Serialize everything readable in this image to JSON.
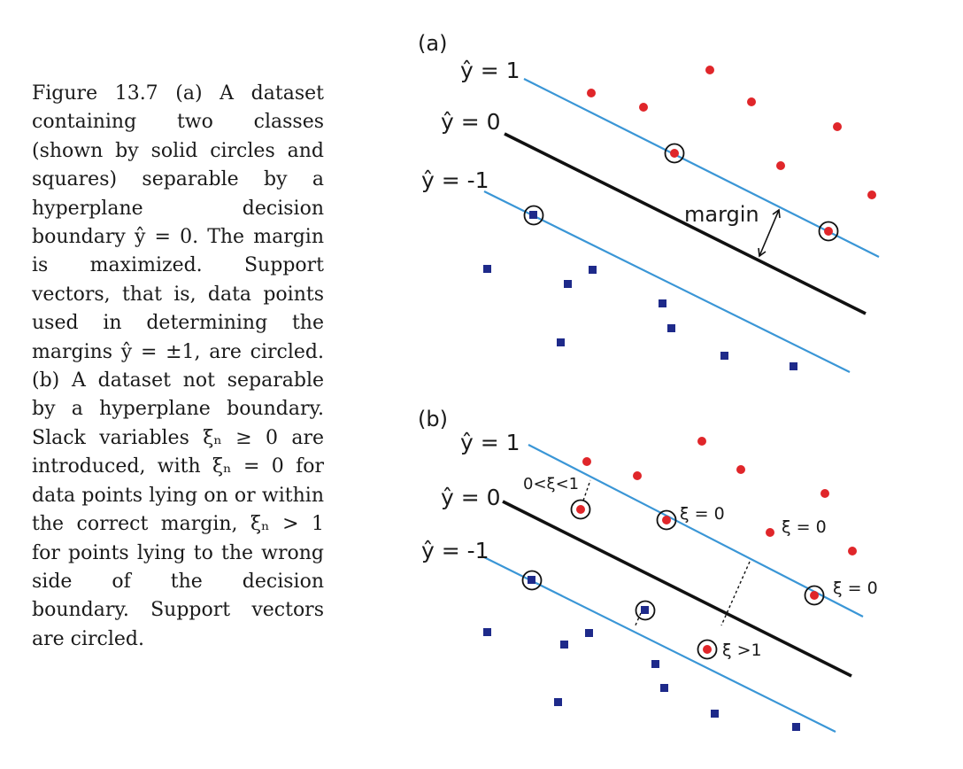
{
  "caption": "Figure 13.7 (a) A dataset containing two classes (shown by solid circles and squares) separable by a hyperplane decision boundary ŷ = 0. The margin is maximized. Support vectors, that is, data points used in determining the margins ŷ = ±1, are circled. (b) A dataset not separable by a hyperplane boundary. Slack variables ξₙ ≥ 0 are introduced, with ξₙ = 0 for data points lying on or within the correct margin, ξₙ > 1 for points lying to the wrong side of the decision boundary. Support vectors are circled.",
  "colors": {
    "margin_line": "#3a96d6",
    "boundary_line": "#111111",
    "class_circle": "#e0262a",
    "class_square": "#1e2a8a"
  },
  "panel_a": {
    "label": "(a)",
    "y_plus_label": "ŷ = 1",
    "y_zero_label": "ŷ = 0",
    "y_minus_label": "ŷ = -1",
    "margin_label": "margin"
  },
  "panel_b": {
    "label": "(b)",
    "y_plus_label": "ŷ = 1",
    "y_zero_label": "ŷ = 0",
    "y_minus_label": "ŷ = -1",
    "xi_between_label": "0<ξ<1",
    "xi_zero_label_1": "ξ = 0",
    "xi_zero_label_2": "ξ = 0",
    "xi_zero_label_3": "ξ = 0",
    "xi_gt1_label": "ξ >1"
  }
}
